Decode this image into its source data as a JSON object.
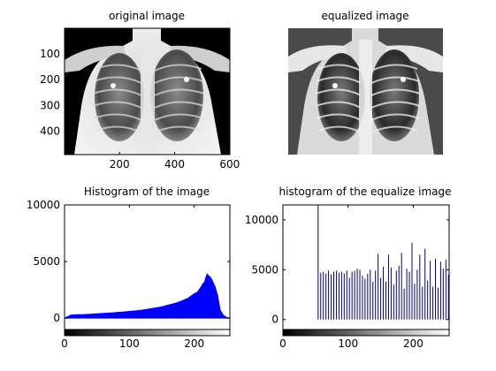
{
  "chart_data": [
    {
      "type": "image",
      "title": "original image",
      "xticks": [
        200,
        400,
        600
      ],
      "yticks": [
        100,
        200,
        300,
        400
      ],
      "xlim": [
        0.5,
        600.5
      ],
      "ylim": [
        0.5,
        490.5
      ]
    },
    {
      "type": "image",
      "title": "equalized image"
    },
    {
      "type": "area",
      "title": "Histogram of the image",
      "xlim": [
        0,
        255
      ],
      "ylim": [
        -1000,
        10000
      ],
      "xticks": [
        0,
        100,
        200
      ],
      "yticks": [
        0,
        5000,
        10000
      ],
      "color": "#0000ff",
      "x": [
        0,
        10,
        20,
        30,
        40,
        50,
        60,
        70,
        80,
        90,
        100,
        110,
        120,
        130,
        140,
        150,
        160,
        170,
        180,
        190,
        200,
        205,
        210,
        213,
        216,
        218,
        220,
        222,
        225,
        228,
        232,
        236,
        240,
        245,
        250,
        255
      ],
      "values": [
        0,
        280,
        300,
        320,
        350,
        380,
        420,
        450,
        500,
        540,
        600,
        650,
        720,
        800,
        900,
        1000,
        1150,
        1300,
        1500,
        1750,
        2150,
        2300,
        2700,
        3000,
        3200,
        3600,
        3900,
        3750,
        3600,
        3300,
        2800,
        2000,
        700,
        250,
        80,
        0
      ]
    },
    {
      "type": "stem",
      "title": "histogram of the equalize image",
      "xlim": [
        0,
        255
      ],
      "ylim": [
        -1000,
        11500
      ],
      "xticks": [
        0,
        100,
        200
      ],
      "yticks": [
        0,
        5000,
        10000
      ],
      "color": "#000080",
      "x": [
        54,
        58,
        62,
        66,
        70,
        74,
        78,
        82,
        86,
        90,
        94,
        98,
        102,
        106,
        110,
        114,
        118,
        122,
        126,
        130,
        134,
        138,
        142,
        146,
        150,
        154,
        158,
        162,
        166,
        170,
        174,
        178,
        182,
        186,
        190,
        194,
        198,
        202,
        206,
        210,
        214,
        218,
        222,
        226,
        230,
        234,
        238,
        242,
        246,
        250,
        254
      ],
      "values": [
        11500,
        4700,
        4800,
        4600,
        4900,
        4500,
        4800,
        4900,
        4700,
        4800,
        4600,
        4900,
        4200,
        4800,
        4900,
        5100,
        5000,
        4400,
        4100,
        4600,
        5000,
        3800,
        4900,
        6600,
        4200,
        5300,
        3800,
        6500,
        5200,
        3500,
        4900,
        5400,
        6700,
        3100,
        5100,
        4800,
        7700,
        3600,
        5000,
        6500,
        3300,
        7100,
        3900,
        5900,
        3300,
        6100,
        3200,
        5800,
        5100,
        6000,
        4500
      ]
    }
  ]
}
